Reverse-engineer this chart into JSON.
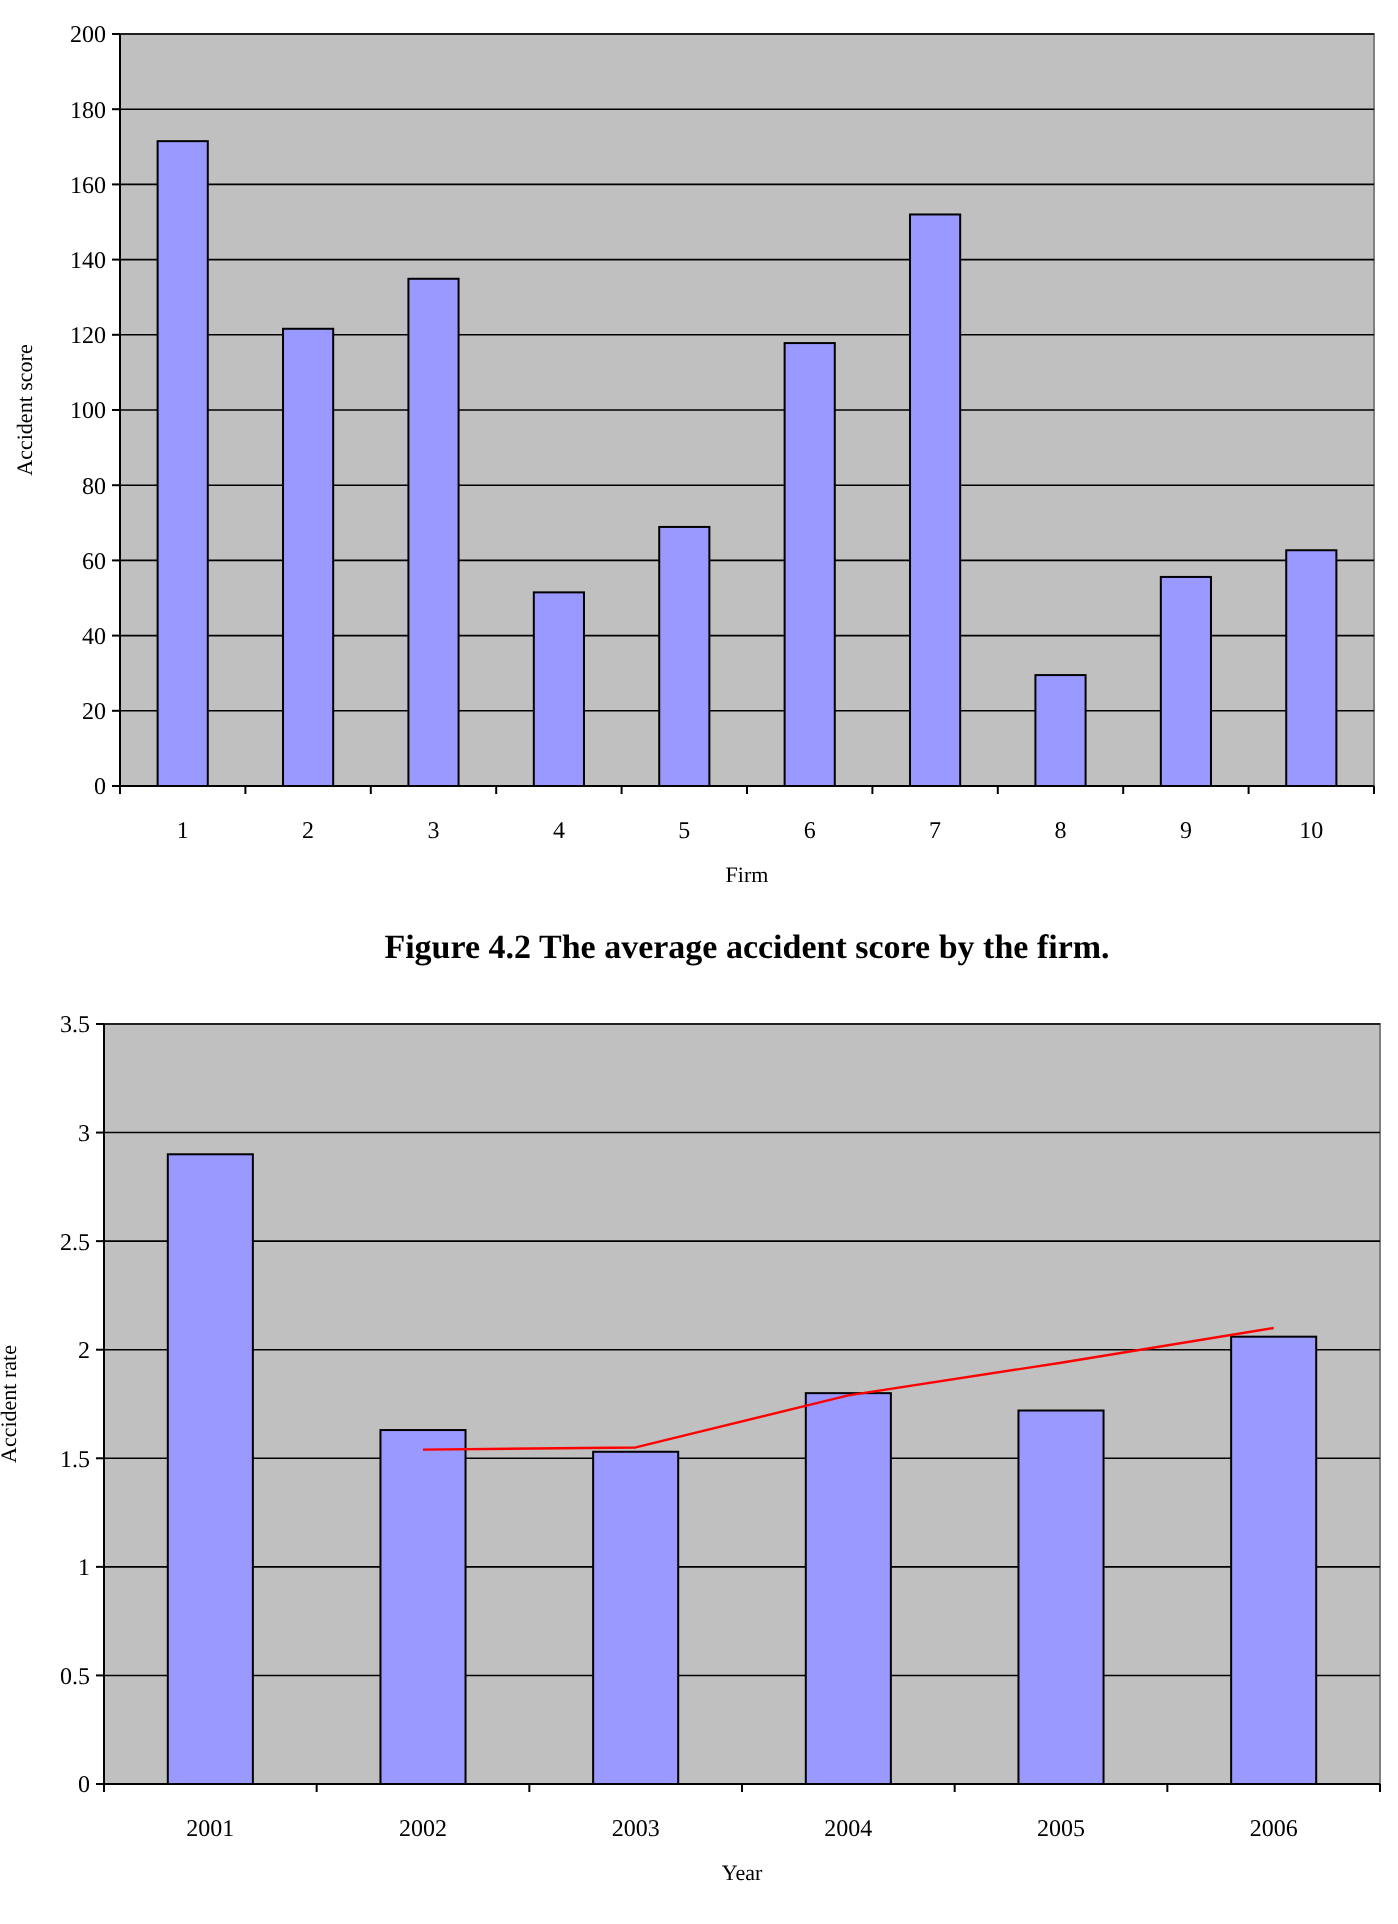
{
  "chart_data": [
    {
      "type": "bar",
      "title": "Figure 4.2 The average accident score by the firm.",
      "xlabel": "Firm",
      "ylabel": "Accident score",
      "categories": [
        "1",
        "2",
        "3",
        "4",
        "5",
        "6",
        "7",
        "8",
        "9",
        "10"
      ],
      "values": [
        171.5,
        121.6,
        134.9,
        51.5,
        68.9,
        117.8,
        152,
        29.5,
        55.6,
        62.7
      ],
      "color": "#9999ff",
      "ylim": [
        0,
        200
      ],
      "yticks": [
        0,
        20,
        40,
        60,
        80,
        100,
        120,
        140,
        160,
        180,
        200
      ],
      "grid": "y"
    },
    {
      "type": "bar",
      "xlabel": "Year",
      "ylabel": "Accident rate",
      "categories": [
        "2001",
        "2002",
        "2003",
        "2004",
        "2005",
        "2006"
      ],
      "series": [
        {
          "type": "bar",
          "color": "#9999ff",
          "values": [
            2.9,
            1.63,
            1.53,
            1.8,
            1.72,
            2.06
          ]
        },
        {
          "type": "line",
          "color": "#ff0000",
          "values": [
            null,
            1.54,
            1.55,
            1.79,
            1.94,
            2.1
          ]
        }
      ],
      "ylim": [
        0,
        3.5
      ],
      "yticks": [
        0,
        0.5,
        1,
        1.5,
        2,
        2.5,
        3,
        3.5
      ],
      "grid": "y"
    }
  ]
}
